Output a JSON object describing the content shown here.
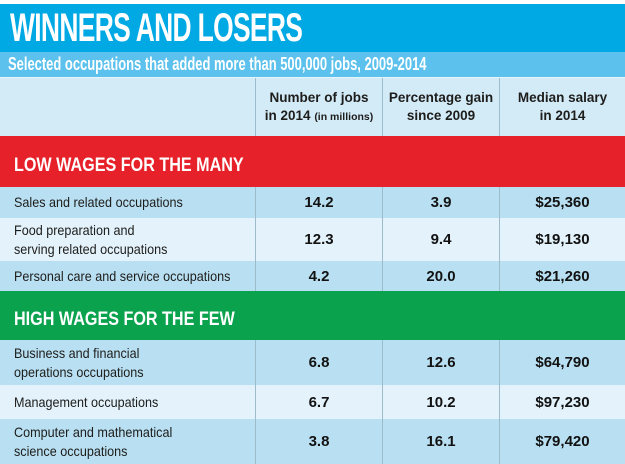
{
  "colors": {
    "title_bar": "#00a9e4",
    "subtitle_bar": "#5cc1ec",
    "header_row": "#d3eaf7",
    "row_dark": "#b9e0f2",
    "row_light": "#e3f2fb",
    "section_low_wages": "#e6212a",
    "section_high_wages": "#0ba24e",
    "column_separator": "#9cbccb",
    "text": "#1d1d1b",
    "band_text": "#ffffff"
  },
  "header": {
    "title": "WINNERS AND LOSERS",
    "subtitle": "Selected occupations that added more than 500,000 jobs, 2009-2014"
  },
  "table": {
    "columns": [
      {
        "line1": "Number of jobs",
        "line2": "in 2014",
        "note": "(in millions)"
      },
      {
        "line1": "Percentage gain",
        "line2": "since 2009"
      },
      {
        "line1": "Median salary",
        "line2": "in 2014"
      }
    ],
    "sections": [
      {
        "label": "LOW WAGES FOR THE MANY",
        "rows": [
          {
            "occupation": "Sales and related occupations",
            "jobs": "14.2",
            "gain": "3.9",
            "salary": "$25,360"
          },
          {
            "occupation": "Food preparation and\nserving related occupations",
            "jobs": "12.3",
            "gain": "9.4",
            "salary": "$19,130"
          },
          {
            "occupation": "Personal care and service occupations",
            "jobs": "4.2",
            "gain": "20.0",
            "salary": "$21,260"
          }
        ]
      },
      {
        "label": "HIGH WAGES FOR THE FEW",
        "rows": [
          {
            "occupation": "Business and financial\noperations occupations",
            "jobs": "6.8",
            "gain": "12.6",
            "salary": "$64,790"
          },
          {
            "occupation": "Management occupations",
            "jobs": "6.7",
            "gain": "10.2",
            "salary": "$97,230"
          },
          {
            "occupation": "Computer and mathematical\nscience occupations",
            "jobs": "3.8",
            "gain": "16.1",
            "salary": "$79,420"
          }
        ]
      }
    ]
  },
  "chart_data": {
    "type": "table",
    "title": "WINNERS AND LOSERS",
    "subtitle": "Selected occupations that added more than 500,000 jobs, 2009-2014",
    "columns": [
      "Occupation",
      "Number of jobs in 2014 (in millions)",
      "Percentage gain since 2009",
      "Median salary in 2014"
    ],
    "groups": [
      {
        "group": "LOW WAGES FOR THE MANY",
        "rows": [
          [
            "Sales and related occupations",
            14.2,
            3.9,
            "$25,360"
          ],
          [
            "Food preparation and serving related occupations",
            12.3,
            9.4,
            "$19,130"
          ],
          [
            "Personal care and service occupations",
            4.2,
            20.0,
            "$21,260"
          ]
        ]
      },
      {
        "group": "HIGH WAGES FOR THE FEW",
        "rows": [
          [
            "Business and financial operations occupations",
            6.8,
            12.6,
            "$64,790"
          ],
          [
            "Management occupations",
            6.7,
            10.2,
            "$97,230"
          ],
          [
            "Computer and mathematical science occupations",
            3.8,
            16.1,
            "$79,420"
          ]
        ]
      }
    ]
  }
}
